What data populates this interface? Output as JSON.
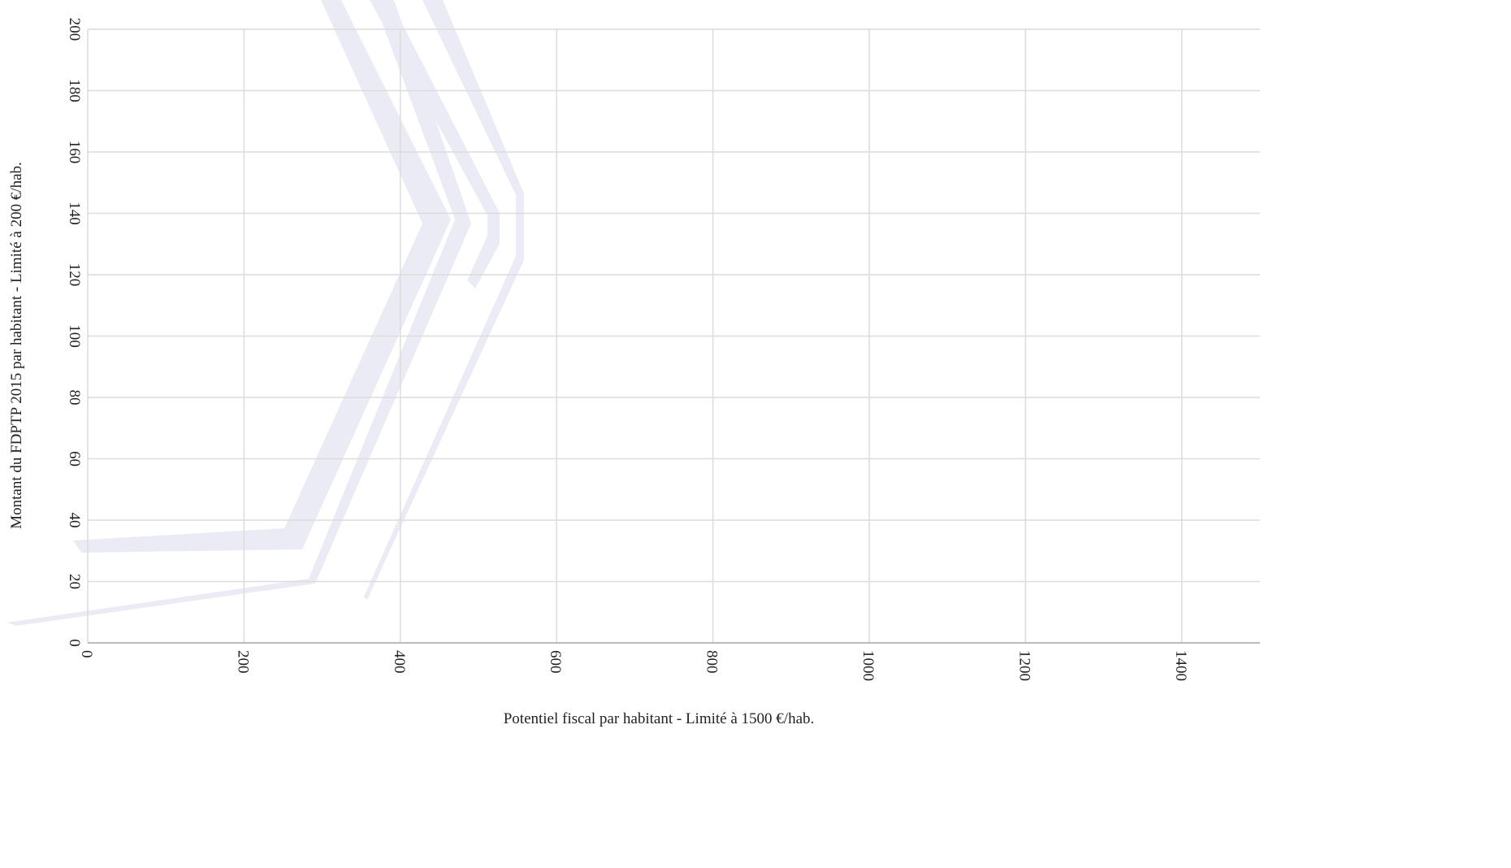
{
  "chart_data": {
    "type": "scatter",
    "x_label": "Potentiel fiscal par habitant - Limité à 1500 €/hab.",
    "y_label": "Montant du FDPTP 2015 par habitant - Limité à 200 €/hab.",
    "xlim": [
      0,
      1500
    ],
    "ylim": [
      0,
      200
    ],
    "xticks": [
      0,
      200,
      400,
      600,
      800,
      1000,
      1200,
      1400
    ],
    "yticks": [
      0,
      20,
      40,
      60,
      80,
      100,
      120,
      140,
      160,
      180,
      200
    ],
    "grid": true
  }
}
